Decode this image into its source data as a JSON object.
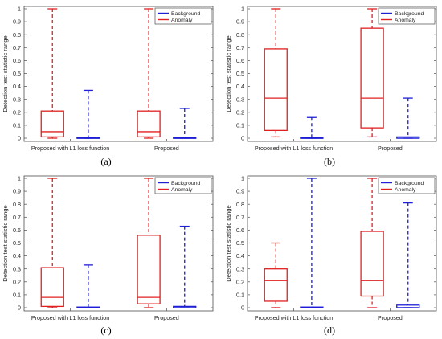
{
  "legend": {
    "items": [
      {
        "label": "Background",
        "color": "#1f1fd6"
      },
      {
        "label": "Anomaly",
        "color": "#e02020"
      }
    ]
  },
  "colors": {
    "background": "#1f1fd6",
    "anomaly": "#e02020",
    "axis": "#4d4d4d",
    "text": "#262626"
  },
  "chart_data": [
    {
      "type": "boxplot",
      "panel_label": "(a)",
      "ylabel": "Detection test statistic range",
      "ylim": [
        0,
        1
      ],
      "yticks": [
        0,
        0.1,
        0.2,
        0.3,
        0.4,
        0.5,
        0.6,
        0.7,
        0.8,
        0.9,
        1
      ],
      "ytick_labels": [
        "0",
        "0.1",
        "0.2",
        "0.3",
        "0.4",
        "0.5",
        "0.6",
        "0.7",
        "0.8",
        "0.9",
        "1"
      ],
      "categories": [
        "Proposed with L1 loss function",
        "Proposed"
      ],
      "legend_position": "top-right",
      "series": [
        {
          "name": "Anomaly",
          "boxes": [
            {
              "min": 0.0,
              "q1": 0.01,
              "median": 0.05,
              "q3": 0.21,
              "max": 1.0
            },
            {
              "min": 0.0,
              "q1": 0.01,
              "median": 0.05,
              "q3": 0.21,
              "max": 1.0
            }
          ]
        },
        {
          "name": "Background",
          "boxes": [
            {
              "min": 0.0,
              "q1": 0.0,
              "median": 0.0,
              "q3": 0.005,
              "max": 0.37
            },
            {
              "min": 0.0,
              "q1": 0.0,
              "median": 0.0,
              "q3": 0.005,
              "max": 0.23
            }
          ]
        }
      ]
    },
    {
      "type": "boxplot",
      "panel_label": "(b)",
      "ylabel": "Detection test statistic range",
      "ylim": [
        0,
        1
      ],
      "yticks": [
        0,
        0.1,
        0.2,
        0.3,
        0.4,
        0.5,
        0.6,
        0.7,
        0.8,
        0.9,
        1
      ],
      "ytick_labels": [
        "0",
        "0.1",
        "0.2",
        "0.3",
        "0.4",
        "0.5",
        "0.6",
        "0.7",
        "0.8",
        "0.9",
        "1"
      ],
      "categories": [
        "Proposed with L1 loss function",
        "Proposed"
      ],
      "legend_position": "top-right",
      "series": [
        {
          "name": "Anomaly",
          "boxes": [
            {
              "min": 0.01,
              "q1": 0.06,
              "median": 0.31,
              "q3": 0.69,
              "max": 1.0
            },
            {
              "min": 0.01,
              "q1": 0.08,
              "median": 0.31,
              "q3": 0.85,
              "max": 1.0
            }
          ]
        },
        {
          "name": "Background",
          "boxes": [
            {
              "min": 0.0,
              "q1": 0.0,
              "median": 0.0,
              "q3": 0.005,
              "max": 0.16
            },
            {
              "min": 0.0,
              "q1": 0.0,
              "median": 0.0,
              "q3": 0.01,
              "max": 0.31
            }
          ]
        }
      ]
    },
    {
      "type": "boxplot",
      "panel_label": "(c)",
      "ylabel": "Detection test statistic range",
      "ylim": [
        0,
        1
      ],
      "yticks": [
        0,
        0.1,
        0.2,
        0.3,
        0.4,
        0.5,
        0.6,
        0.7,
        0.8,
        0.9,
        1
      ],
      "ytick_labels": [
        "0",
        "0.1",
        "0.2",
        "0.3",
        "0.4",
        "0.5",
        "0.6",
        "0.7",
        "0.8",
        "0.9",
        "1"
      ],
      "categories": [
        "Proposed with L1 loss function",
        "Proposed"
      ],
      "legend_position": "top-right",
      "series": [
        {
          "name": "Anomaly",
          "boxes": [
            {
              "min": 0.0,
              "q1": 0.01,
              "median": 0.08,
              "q3": 0.31,
              "max": 1.0
            },
            {
              "min": 0.0,
              "q1": 0.03,
              "median": 0.08,
              "q3": 0.56,
              "max": 1.0
            }
          ]
        },
        {
          "name": "Background",
          "boxes": [
            {
              "min": 0.0,
              "q1": 0.0,
              "median": 0.0,
              "q3": 0.005,
              "max": 0.33
            },
            {
              "min": 0.0,
              "q1": 0.0,
              "median": 0.0,
              "q3": 0.01,
              "max": 0.63
            }
          ]
        }
      ]
    },
    {
      "type": "boxplot",
      "panel_label": "(d)",
      "ylabel": "Detection test statistic range",
      "ylim": [
        0,
        1
      ],
      "yticks": [
        0,
        0.1,
        0.2,
        0.3,
        0.4,
        0.5,
        0.6,
        0.7,
        0.8,
        0.9,
        1
      ],
      "ytick_labels": [
        "0",
        "0.1",
        "0.2",
        "0.3",
        "0.4",
        "0.5",
        "0.6",
        "0.7",
        "0.8",
        "0.9",
        "1"
      ],
      "categories": [
        "Proposed with L1 loss function",
        "Proposed"
      ],
      "legend_position": "top-right",
      "series": [
        {
          "name": "Anomaly",
          "boxes": [
            {
              "min": 0.0,
              "q1": 0.05,
              "median": 0.21,
              "q3": 0.3,
              "max": 0.5
            },
            {
              "min": 0.0,
              "q1": 0.09,
              "median": 0.21,
              "q3": 0.59,
              "max": 1.0
            }
          ]
        },
        {
          "name": "Background",
          "boxes": [
            {
              "min": 0.0,
              "q1": 0.0,
              "median": 0.0,
              "q3": 0.005,
              "max": 1.0
            },
            {
              "min": 0.0,
              "q1": 0.0,
              "median": 0.0,
              "q3": 0.02,
              "max": 0.81
            }
          ]
        }
      ]
    }
  ]
}
